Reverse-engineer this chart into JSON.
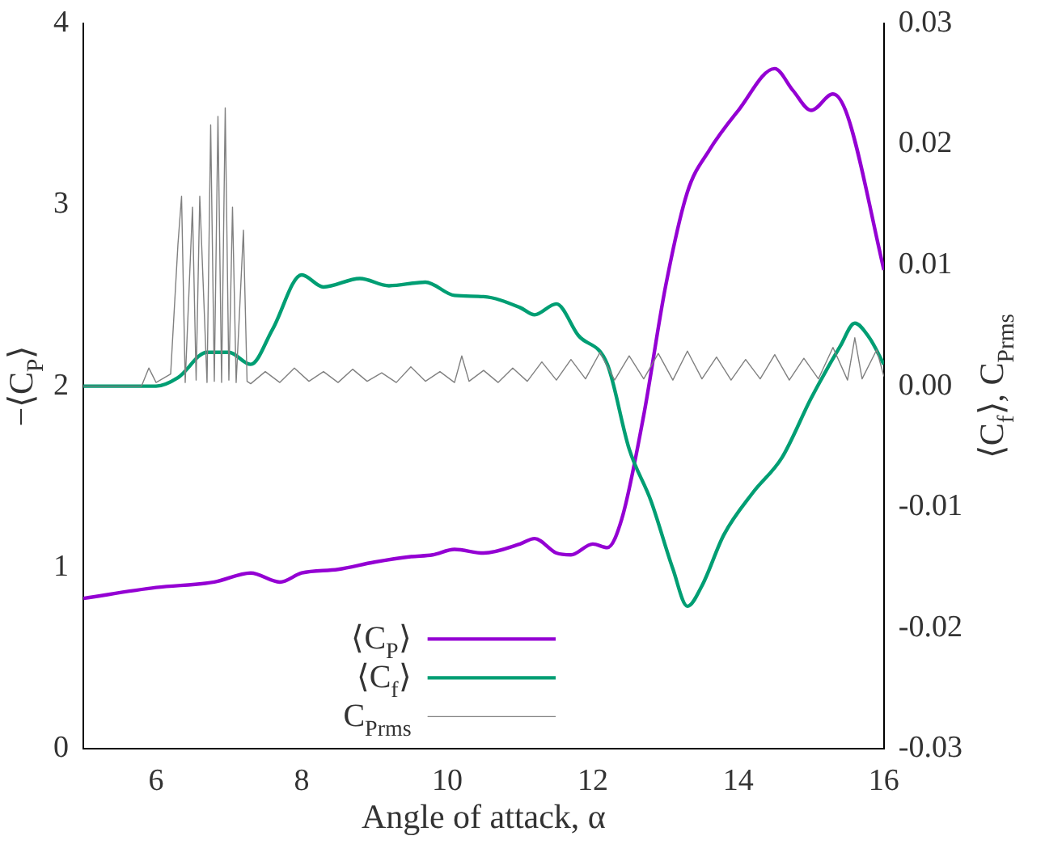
{
  "chart_data": {
    "type": "line",
    "xlabel": "Angle of attack, α",
    "ylabel": "−⟨C$_{P}$⟩",
    "y2label": "⟨C$_{f}$⟩, C$_{Prms}$",
    "xlim": [
      5,
      16
    ],
    "xticks": [
      6,
      8,
      10,
      12,
      14,
      16
    ],
    "ylim": [
      0,
      4
    ],
    "yticks": [
      0,
      1,
      2,
      3,
      4
    ],
    "y2lim": [
      -0.03,
      0.03
    ],
    "y2ticks": [
      -0.03,
      -0.02,
      -0.01,
      {
        "value": 0,
        "label": "0.00"
      },
      0.01,
      0.02,
      0.03
    ],
    "grid": false,
    "legend": "bottom",
    "marker": "none",
    "line_style": "solid",
    "series": [
      {
        "name": "⟨C$_{P}$⟩",
        "color": "#9400d3",
        "axis": "y",
        "x": [
          5,
          6,
          6.8,
          7.3,
          7.7,
          8,
          8.5,
          9,
          9.5,
          9.8,
          10.1,
          10.5,
          11,
          11.2,
          11.5,
          11.7,
          12,
          12.2,
          12.4,
          12.7,
          13,
          13.3,
          13.6,
          14,
          14.5,
          14.75,
          15,
          15.3,
          15.5,
          16
        ],
        "values": [
          0.83,
          0.89,
          0.92,
          0.97,
          0.92,
          0.97,
          0.99,
          1.03,
          1.06,
          1.07,
          1.1,
          1.08,
          1.13,
          1.16,
          1.08,
          1.07,
          1.13,
          1.11,
          1.27,
          1.84,
          2.55,
          3.07,
          3.3,
          3.52,
          3.75,
          3.63,
          3.52,
          3.61,
          3.49,
          2.64
        ]
      },
      {
        "name": "⟨C$_{f}$⟩",
        "color": "#009e73",
        "axis": "y2",
        "x": [
          5,
          6,
          6.3,
          6.7,
          7,
          7.3,
          7.6,
          8,
          8.3,
          8.8,
          9.2,
          9.7,
          10.1,
          10.5,
          11,
          11.2,
          11.5,
          11.8,
          12.2,
          12.5,
          12.8,
          13.1,
          13.3,
          13.5,
          13.8,
          14.2,
          14.6,
          15,
          15.4,
          15.6,
          15.8,
          16
        ],
        "values": [
          0,
          0,
          0.0007,
          0.0028,
          0.0028,
          0.0018,
          0.0047,
          0.0092,
          0.0082,
          0.0089,
          0.0083,
          0.0086,
          0.0075,
          0.0074,
          0.0065,
          0.0059,
          0.0068,
          0.0042,
          0.0018,
          -0.0052,
          -0.0095,
          -0.0151,
          -0.0182,
          -0.0165,
          -0.0123,
          -0.0088,
          -0.0059,
          -0.001,
          0.0033,
          0.0052,
          0.004,
          0.0018
        ]
      },
      {
        "name": "C$_{Prms}$",
        "color": "#808080",
        "axis": "y2",
        "x": [
          5,
          5.8,
          5.9,
          6,
          6.2,
          6.3,
          6.35,
          6.4,
          6.5,
          6.55,
          6.6,
          6.7,
          6.75,
          6.8,
          6.85,
          6.9,
          6.95,
          7,
          7.05,
          7.1,
          7.2,
          7.25,
          7.3,
          7.5,
          7.7,
          7.9,
          8.1,
          8.3,
          8.5,
          8.7,
          8.9,
          9.1,
          9.3,
          9.5,
          9.7,
          9.9,
          10.1,
          10.2,
          10.3,
          10.5,
          10.7,
          10.9,
          11.1,
          11.3,
          11.5,
          11.7,
          11.9,
          12.1,
          12.3,
          12.5,
          12.7,
          12.9,
          13.1,
          13.3,
          13.5,
          13.7,
          13.9,
          14.1,
          14.3,
          14.5,
          14.7,
          14.9,
          15.1,
          15.3,
          15.5,
          15.6,
          15.7,
          15.9,
          16
        ],
        "values": [
          0,
          0,
          0.0015,
          0.0003,
          0.001,
          0.0117,
          0.0157,
          0.0003,
          0.0148,
          0.0005,
          0.0157,
          0.0003,
          0.0216,
          0.0004,
          0.0223,
          0.0003,
          0.023,
          0.0005,
          0.0148,
          0.0003,
          0.0129,
          0.0004,
          0.0002,
          0.0012,
          0.0003,
          0.0015,
          0.0004,
          0.0012,
          0.0003,
          0.0014,
          0.0004,
          0.0011,
          0.0003,
          0.0016,
          0.0004,
          0.0012,
          0.0003,
          0.0025,
          0.0004,
          0.0013,
          0.0003,
          0.0015,
          0.0004,
          0.002,
          0.0005,
          0.0022,
          0.0006,
          0.0028,
          0.0005,
          0.0025,
          0.0006,
          0.0027,
          0.0005,
          0.0029,
          0.0006,
          0.0024,
          0.0005,
          0.0022,
          0.0006,
          0.0026,
          0.0005,
          0.0023,
          0.0006,
          0.0032,
          0.0005,
          0.004,
          0.0006,
          0.003,
          0.0008
        ]
      }
    ]
  }
}
